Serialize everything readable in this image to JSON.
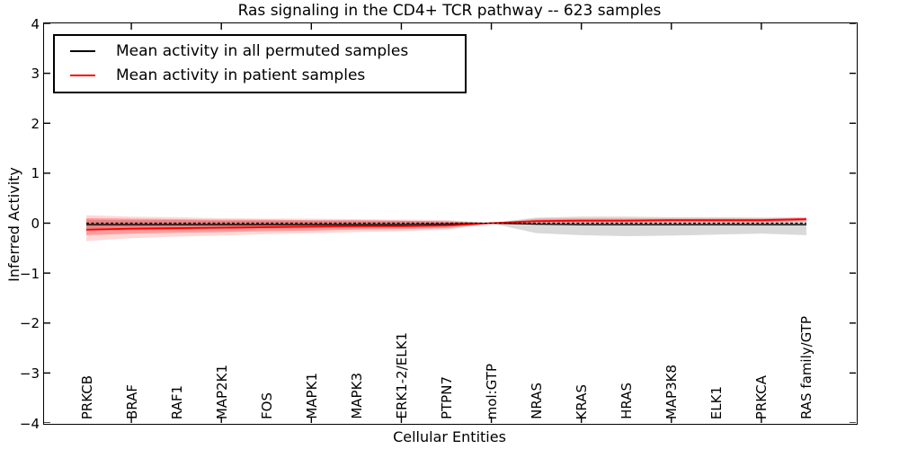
{
  "title": "Ras signaling in the CD4+ TCR pathway -- 623 samples",
  "xlabel": "Cellular Entities",
  "ylabel": "Inferred Activity",
  "legend": {
    "position": "upper left",
    "items": [
      {
        "label": "Mean activity in all permuted samples",
        "color": "#000000"
      },
      {
        "label": "Mean activity in patient samples",
        "color": "#ff0000"
      }
    ]
  },
  "colors": {
    "background": "#ffffff",
    "spine": "#000000",
    "permuted_line": "#000000",
    "patient_line": "#ff0000",
    "permuted_band": "rgba(130,130,130,0.30)",
    "patient_band_outer": "rgba(255,40,40,0.18)",
    "patient_band_inner": "rgba(255,0,0,0.28)"
  },
  "chart_data": {
    "type": "line",
    "title": "Ras signaling in the CD4+ TCR pathway -- 623 samples",
    "xlabel": "Cellular Entities",
    "ylabel": "Inferred Activity",
    "grid": false,
    "legend_position": "upper left",
    "categories": [
      "PRKCB",
      "BRAF",
      "RAF1",
      "MAP2K1",
      "FOS",
      "MAPK1",
      "MAPK3",
      "ERK1-2/ELK1",
      "PTPN7",
      "mol:GTP",
      "NRAS",
      "KRAS",
      "HRAS",
      "MAP3K8",
      "ELK1",
      "PRKCA",
      "RAS family/GTP"
    ],
    "ylim": [
      -4,
      4
    ],
    "xlim": [
      -0.94,
      17.1
    ],
    "yticks": [
      -4,
      -3,
      -2,
      -1,
      0,
      1,
      2,
      3,
      4
    ],
    "ytick_labels": [
      "−4",
      "−3",
      "−2",
      "−1",
      "0",
      "1",
      "2",
      "3",
      "4"
    ],
    "x_tick_indices": [
      1,
      3,
      5,
      7,
      9,
      11,
      13,
      15
    ],
    "series": [
      {
        "name": "mean-activity-permuted",
        "label": "Mean activity in all permuted samples",
        "color": "#000000",
        "style": "solid",
        "width": 1.3,
        "values": [
          -0.03,
          -0.03,
          -0.03,
          -0.03,
          -0.03,
          -0.03,
          -0.03,
          -0.03,
          -0.02,
          0.0,
          -0.02,
          -0.03,
          -0.03,
          -0.03,
          -0.03,
          -0.03,
          -0.03
        ]
      },
      {
        "name": "mean-activity-patient",
        "label": "Mean activity in patient samples",
        "color": "#ff0000",
        "style": "solid",
        "width": 1.8,
        "values": [
          -0.13,
          -0.11,
          -0.1,
          -0.09,
          -0.08,
          -0.07,
          -0.06,
          -0.06,
          -0.05,
          0.0,
          0.04,
          0.05,
          0.05,
          0.06,
          0.06,
          0.06,
          0.08
        ]
      },
      {
        "name": "permuted-dashed-overlay",
        "label": "",
        "color": "#000000",
        "style": "dashed",
        "width": 1.2,
        "values": [
          0,
          0,
          0,
          0,
          0,
          0,
          0,
          0,
          0,
          0,
          0,
          0,
          0,
          0,
          0,
          0,
          0
        ]
      }
    ],
    "bands": [
      {
        "name": "permuted-band",
        "color": "rgba(130,130,130,0.30)",
        "upper": [
          0.07,
          0.06,
          0.06,
          0.05,
          0.05,
          0.05,
          0.04,
          0.04,
          0.03,
          0.005,
          0.11,
          0.13,
          0.13,
          0.12,
          0.12,
          0.11,
          0.11
        ],
        "lower": [
          -0.16,
          -0.14,
          -0.13,
          -0.12,
          -0.11,
          -0.1,
          -0.09,
          -0.08,
          -0.06,
          -0.005,
          -0.2,
          -0.24,
          -0.26,
          -0.25,
          -0.23,
          -0.21,
          -0.24
        ]
      },
      {
        "name": "patient-band-outer",
        "color": "rgba(255,40,40,0.18)",
        "upper": [
          0.16,
          0.13,
          0.12,
          0.1,
          0.09,
          0.09,
          0.08,
          0.07,
          0.06,
          0.01,
          0.09,
          0.1,
          0.1,
          0.1,
          0.1,
          0.1,
          0.12
        ],
        "lower": [
          -0.36,
          -0.3,
          -0.27,
          -0.25,
          -0.22,
          -0.2,
          -0.18,
          -0.16,
          -0.13,
          -0.01,
          -0.01,
          0.0,
          0.0,
          0.01,
          0.01,
          0.01,
          0.03
        ]
      },
      {
        "name": "patient-band-inner",
        "color": "rgba(255,0,0,0.28)",
        "upper": [
          0.1,
          0.09,
          0.08,
          0.07,
          0.07,
          0.06,
          0.06,
          0.05,
          0.04,
          0.005,
          0.07,
          0.08,
          0.08,
          0.08,
          0.08,
          0.08,
          0.1
        ],
        "lower": [
          -0.24,
          -0.21,
          -0.19,
          -0.18,
          -0.16,
          -0.15,
          -0.13,
          -0.12,
          -0.1,
          -0.005,
          0.01,
          0.02,
          0.02,
          0.03,
          0.03,
          0.03,
          0.05
        ]
      }
    ]
  }
}
